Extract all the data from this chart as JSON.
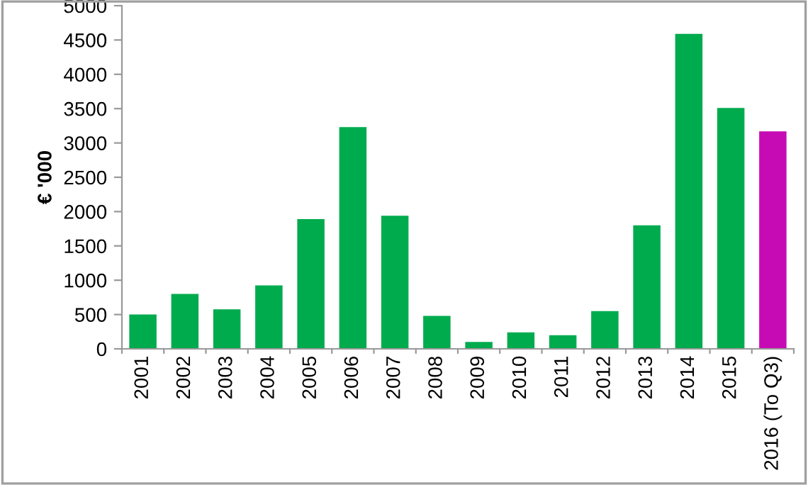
{
  "chart_data": {
    "type": "bar",
    "ylabel": "€ '000",
    "categories": [
      "2001",
      "2002",
      "2003",
      "2004",
      "2005",
      "2006",
      "2007",
      "2008",
      "2009",
      "2010",
      "2011",
      "2012",
      "2013",
      "2014",
      "2015",
      "2016 (To Q3)"
    ],
    "values": [
      500,
      800,
      575,
      925,
      1890,
      3230,
      1940,
      480,
      100,
      240,
      200,
      550,
      1800,
      4590,
      3510,
      3170
    ],
    "colors": [
      "#00ab4e",
      "#00ab4e",
      "#00ab4e",
      "#00ab4e",
      "#00ab4e",
      "#00ab4e",
      "#00ab4e",
      "#00ab4e",
      "#00ab4e",
      "#00ab4e",
      "#00ab4e",
      "#00ab4e",
      "#00ab4e",
      "#00ab4e",
      "#00ab4e",
      "#c70bb4"
    ],
    "ylim": [
      0,
      5000
    ],
    "yticks": [
      0,
      500,
      1000,
      1500,
      2000,
      2500,
      3000,
      3500,
      4000,
      4500,
      5000
    ],
    "grid": false,
    "legend": false
  }
}
